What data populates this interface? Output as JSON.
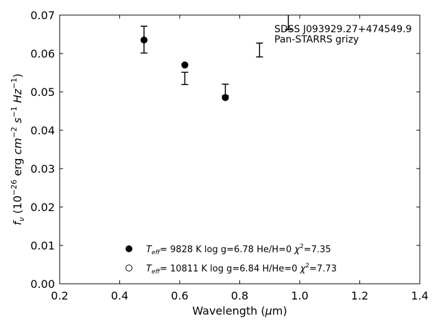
{
  "chart_data": {
    "type": "scatter",
    "title": "",
    "xlabel": "Wavelength (μm)",
    "ylabel": "f_ν (10^-26 erg cm^-2 s^-1 Hz^-1)",
    "xlim": [
      0.2,
      1.4
    ],
    "ylim": [
      0.0,
      0.07
    ],
    "xticks": [
      "0.2",
      "0.4",
      "0.6",
      "0.8",
      "1.0",
      "1.2",
      "1.4"
    ],
    "yticks": [
      "0.00",
      "0.01",
      "0.02",
      "0.03",
      "0.04",
      "0.05",
      "0.06",
      "0.07"
    ],
    "grid": false,
    "annotation": {
      "object": "SDSS J093929.27+474549.9",
      "survey": "Pan-STARRS grizy"
    },
    "observed": {
      "x": [
        0.481,
        0.617,
        0.752,
        0.866,
        0.962
      ],
      "y": [
        0.0636,
        0.0535,
        0.0505,
        0.0609,
        0.0697
      ],
      "yerr": [
        0.0035,
        0.0016,
        0.0015,
        0.0018,
        0.0035
      ]
    },
    "series": [
      {
        "marker": "filled",
        "x": [
          0.481,
          0.617,
          0.752
        ],
        "y": [
          0.0635,
          0.057,
          0.0485
        ]
      },
      {
        "marker": "open",
        "x": [
          0.481,
          0.617,
          0.752
        ],
        "y": [
          0.0635,
          0.057,
          0.0485
        ]
      }
    ],
    "legend": {
      "placement": "lower-center",
      "entries": [
        {
          "marker": "filled",
          "teff_k": "9828",
          "logg": "6.78",
          "abund": "He/H=0",
          "chi2": "7.35"
        },
        {
          "marker": "open",
          "teff_k": "10811",
          "logg": "6.84",
          "abund": "H/He=0",
          "chi2": "7.73"
        }
      ]
    }
  }
}
